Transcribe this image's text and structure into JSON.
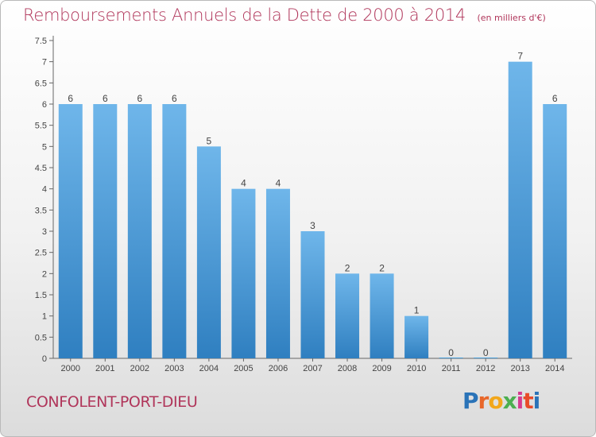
{
  "title": "Remboursements Annuels de la Dette de 2000 à 2014",
  "subtitle": "(en milliers d'€)",
  "commune": "CONFOLENT-PORT-DIEU",
  "logo": {
    "letters": [
      "P",
      "r",
      "o",
      "x",
      "i",
      "t",
      "i"
    ],
    "colors": [
      "#2a73b8",
      "#e8672a",
      "#f2a71b",
      "#4caf50",
      "#d63b8f",
      "#e84b2a",
      "#2a73b8"
    ]
  },
  "colors": {
    "bar": "#4a9fdc",
    "bar_light": "#6fb6ea",
    "bar_dark": "#2f7fc0",
    "title": "#b0355a"
  },
  "chart_data": {
    "type": "bar",
    "title": "Remboursements Annuels de la Dette de 2000 à 2014",
    "categories": [
      "2000",
      "2001",
      "2002",
      "2003",
      "2004",
      "2005",
      "2006",
      "2007",
      "2008",
      "2009",
      "2010",
      "2011",
      "2012",
      "2013",
      "2014"
    ],
    "values": [
      6,
      6,
      6,
      6,
      5,
      4,
      4,
      3,
      2,
      2,
      1,
      0,
      0,
      7,
      6
    ],
    "value_labels": [
      "6",
      "6",
      "6",
      "6",
      "5",
      "4",
      "4",
      "3",
      "2",
      "2",
      "1",
      "0",
      "0",
      "7",
      "6"
    ],
    "yticks": [
      "0",
      "0.5",
      "1",
      "1.5",
      "2",
      "2.5",
      "3",
      "3.5",
      "4",
      "4.5",
      "5",
      "5.5",
      "6",
      "6.5",
      "7",
      "7.5"
    ],
    "ylim": [
      0,
      7.5
    ],
    "grid": false,
    "legend": "none"
  }
}
